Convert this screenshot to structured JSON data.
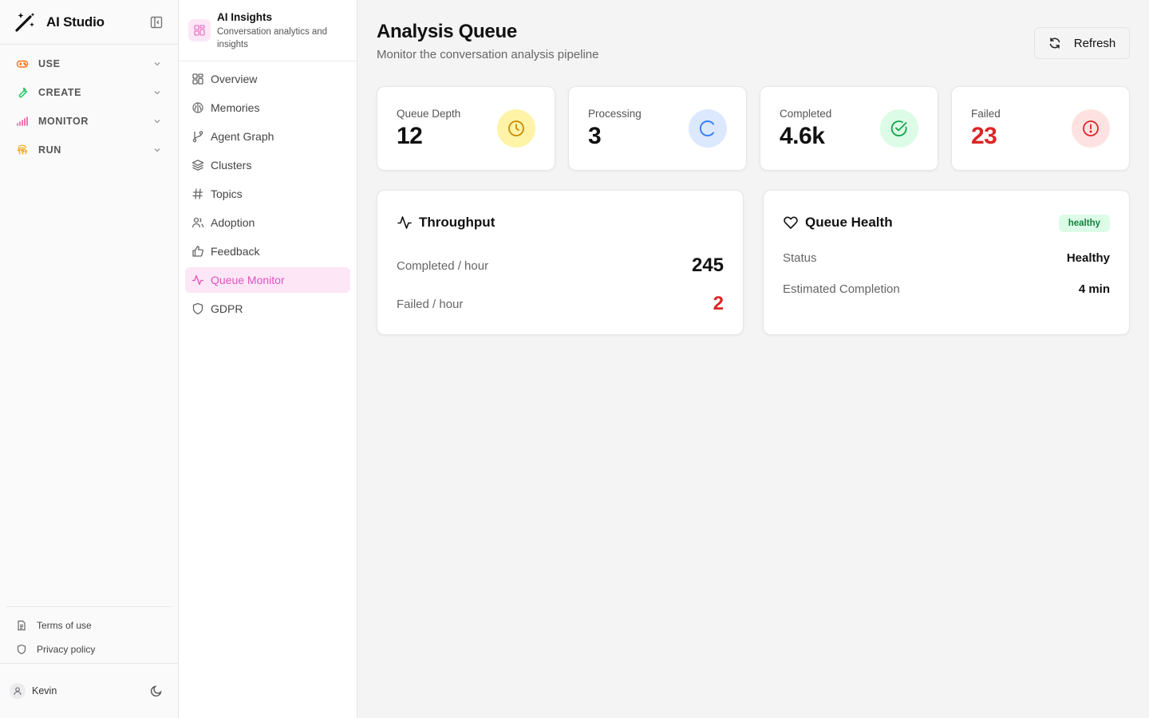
{
  "app": {
    "name": "AI Studio",
    "nav": [
      {
        "label": "USE",
        "icon": "gamepad-icon",
        "color": "#f97316"
      },
      {
        "label": "CREATE",
        "icon": "wrench-icon",
        "color": "#22c55e"
      },
      {
        "label": "MONITOR",
        "icon": "bar-chart-icon",
        "color": "#ec4899"
      },
      {
        "label": "RUN",
        "icon": "fingerprint-icon",
        "color": "#f59e0b"
      }
    ],
    "legal": {
      "terms": "Terms of use",
      "privacy": "Privacy policy"
    },
    "user": {
      "name": "Kevin"
    }
  },
  "section": {
    "title": "AI Insights",
    "subtitle": "Conversation analytics and insights",
    "items": [
      {
        "label": "Overview",
        "icon": "grid-icon"
      },
      {
        "label": "Memories",
        "icon": "brain-icon"
      },
      {
        "label": "Agent Graph",
        "icon": "git-branch-icon"
      },
      {
        "label": "Clusters",
        "icon": "layers-icon"
      },
      {
        "label": "Topics",
        "icon": "hash-icon"
      },
      {
        "label": "Adoption",
        "icon": "users-icon"
      },
      {
        "label": "Feedback",
        "icon": "thumbs-up-icon"
      },
      {
        "label": "Queue Monitor",
        "icon": "activity-icon",
        "active": true
      },
      {
        "label": "GDPR",
        "icon": "shield-icon"
      }
    ],
    "active_color": "#e452c2"
  },
  "page": {
    "title": "Analysis Queue",
    "subtitle": "Monitor the conversation analysis pipeline",
    "refresh_label": "Refresh"
  },
  "stats": [
    {
      "label": "Queue Depth",
      "value": "12",
      "icon": "clock-icon",
      "bg": "#fef3a7",
      "fg": "#ca8a04"
    },
    {
      "label": "Processing",
      "value": "3",
      "icon": "loader-icon",
      "bg": "#dbe8fe",
      "fg": "#3b82f6"
    },
    {
      "label": "Completed",
      "value": "4.6k",
      "icon": "check-circle-icon",
      "bg": "#dcfce7",
      "fg": "#16a34a"
    },
    {
      "label": "Failed",
      "value": "23",
      "icon": "alert-circle-icon",
      "bg": "#fee2e2",
      "fg": "#dc2626"
    }
  ],
  "throughput": {
    "title": "Throughput",
    "completed_label": "Completed / hour",
    "completed_value": "245",
    "failed_label": "Failed / hour",
    "failed_value": "2"
  },
  "health": {
    "title": "Queue Health",
    "badge": "healthy",
    "status_label": "Status",
    "status_value": "Healthy",
    "eta_label": "Estimated Completion",
    "eta_value": "4 min"
  }
}
